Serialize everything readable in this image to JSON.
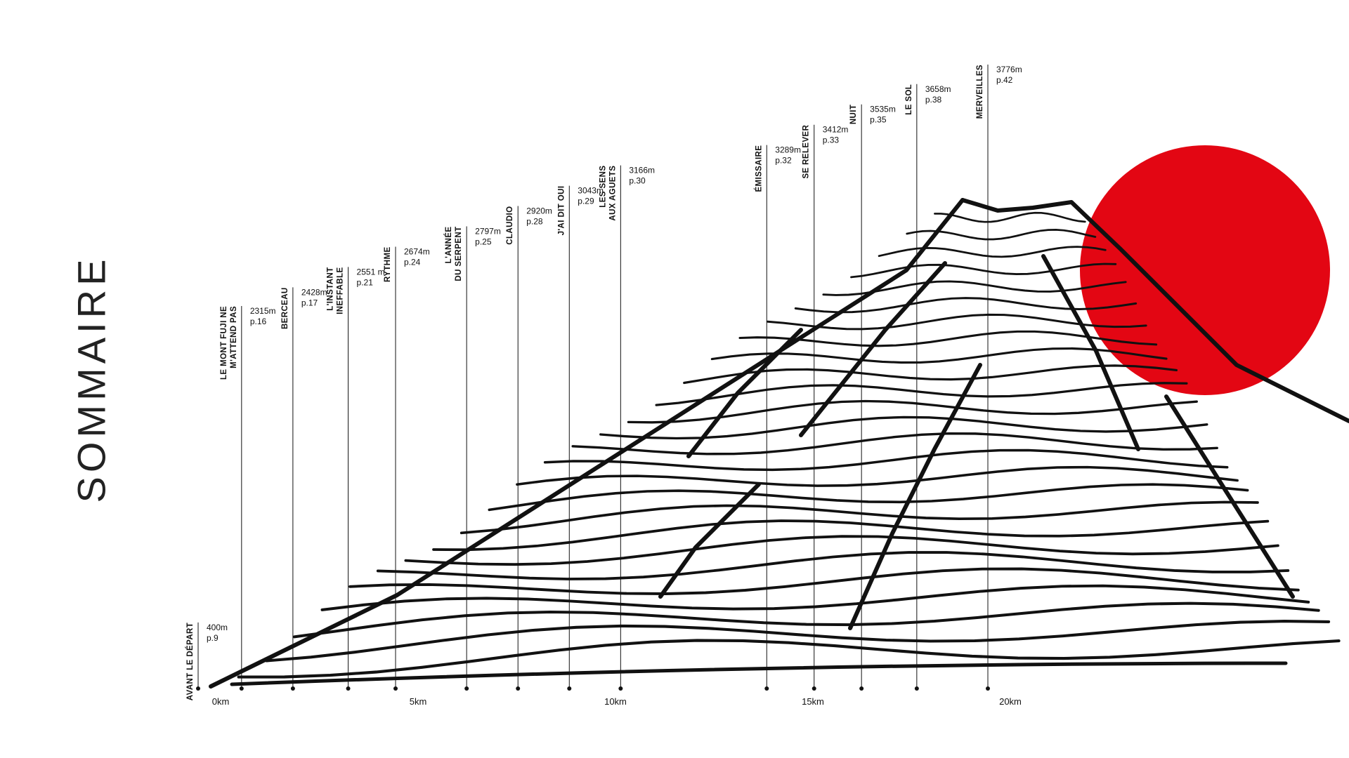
{
  "title": "SOMMAIRE",
  "colors": {
    "sun": "#E30613",
    "ink": "#111111",
    "background": "#ffffff"
  },
  "chart_data": {
    "type": "scatter",
    "title": "",
    "xlabel": "",
    "ylabel": "",
    "x_unit": "km",
    "y_unit": "m",
    "xlim": [
      0,
      28
    ],
    "ylim": [
      0,
      3776
    ],
    "x_ticks": [
      "0km",
      "5km",
      "10km",
      "15km",
      "20km"
    ],
    "x_tick_values": [
      0,
      5,
      10,
      15,
      20
    ],
    "grid": false,
    "legend": "none",
    "points": [
      {
        "label": [
          "AVANT LE DÉPART"
        ],
        "elevation": "400m",
        "page": "p.9",
        "x": 0,
        "y": 400
      },
      {
        "label": [
          "LE MONT FUJI NE",
          "M'ATTEND PAS"
        ],
        "elevation": "2315m",
        "page": "p.16",
        "x": 1.1,
        "y": 2315
      },
      {
        "label": [
          "BERCEAU"
        ],
        "elevation": "2428m",
        "page": "p.17",
        "x": 2.4,
        "y": 2428
      },
      {
        "label": [
          "L'INSTANT",
          "INEFFABLE"
        ],
        "elevation": "2551 m",
        "page": "p.21",
        "x": 3.8,
        "y": 2551
      },
      {
        "label": [
          "RYTHME"
        ],
        "elevation": "2674m",
        "page": "p.24",
        "x": 5.0,
        "y": 2674
      },
      {
        "label": [
          "L'ANNÉE",
          "DU SERPENT"
        ],
        "elevation": "2797m",
        "page": "p.25",
        "x": 6.8,
        "y": 2797
      },
      {
        "label": [
          "CLAUDIO"
        ],
        "elevation": "2920m",
        "page": "p.28",
        "x": 8.1,
        "y": 2920
      },
      {
        "label": [
          "J'AI DIT OUI"
        ],
        "elevation": "3043m",
        "page": "p.29",
        "x": 9.4,
        "y": 3043
      },
      {
        "label": [
          "LES SENS",
          "AUX AGUETS"
        ],
        "elevation": "3166m",
        "page": "p.30",
        "x": 10.7,
        "y": 3166
      },
      {
        "label": [
          "ÉMISSAIRE"
        ],
        "elevation": "3289m",
        "page": "p.32",
        "x": 14.4,
        "y": 3289
      },
      {
        "label": [
          "SE RELEVER"
        ],
        "elevation": "3412m",
        "page": "p.33",
        "x": 15.6,
        "y": 3412
      },
      {
        "label": [
          "NUIT"
        ],
        "elevation": "3535m",
        "page": "p.35",
        "x": 16.8,
        "y": 3535
      },
      {
        "label": [
          "LE SOL"
        ],
        "elevation": "3658m",
        "page": "p.38",
        "x": 18.2,
        "y": 3658
      },
      {
        "label": [
          "MERVEILLES"
        ],
        "elevation": "3776m",
        "page": "p.42",
        "x": 20.0,
        "y": 3776
      }
    ]
  }
}
